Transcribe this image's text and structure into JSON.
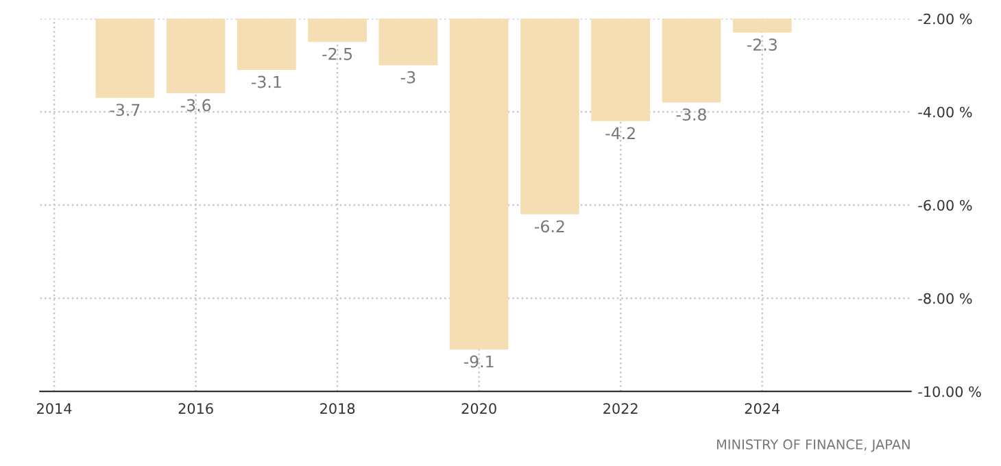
{
  "chart_data": {
    "type": "bar",
    "x": [
      2015,
      2016,
      2017,
      2018,
      2019,
      2020,
      2021,
      2022,
      2023,
      2024
    ],
    "values": [
      -3.7,
      -3.6,
      -3.1,
      -2.5,
      -3,
      -9.1,
      -6.2,
      -4.2,
      -3.8,
      -2.3
    ],
    "color": "#f5deb3",
    "data_labels": true,
    "xlim": [
      2013.8,
      2026.1
    ],
    "xticks": [
      2014,
      2016,
      2018,
      2020,
      2022,
      2024
    ],
    "ylim": [
      -10,
      -2
    ],
    "yticks": [
      {
        "value": -10,
        "label": "-10.00 %"
      },
      {
        "value": -8,
        "label": "-8.00 %"
      },
      {
        "value": -6,
        "label": "-6.00 %"
      },
      {
        "value": -4,
        "label": "-4.00 %"
      },
      {
        "value": -2,
        "label": "-2.00 %"
      }
    ],
    "grid": true,
    "annotations": [
      "MINISTRY OF FINANCE, JAPAN"
    ]
  }
}
